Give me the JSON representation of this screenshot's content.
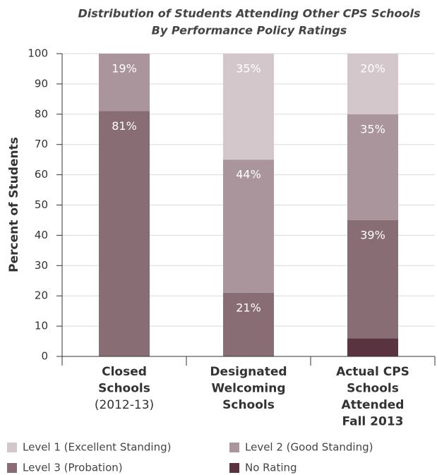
{
  "chart_data": {
    "type": "stacked_bar",
    "title": [
      "Distribution of Students Attending Other CPS Schools",
      "By Performance Policy Ratings"
    ],
    "y_label": "Percent of Students",
    "categories": [
      [
        "Closed",
        "Schools",
        "(2012-13)"
      ],
      [
        "Designated",
        "Welcoming",
        "Schools"
      ],
      [
        "Actual CPS",
        "Schools",
        "Attended",
        "Fall 2013"
      ]
    ],
    "series": [
      {
        "name": "Level 1 (Excellent Standing)",
        "color": "#d4c7cb",
        "values": [
          0,
          35,
          20
        ],
        "value_labels": [
          null,
          "35%",
          "20%"
        ]
      },
      {
        "name": "Level 2 (Good Standing)",
        "color": "#a9959b",
        "values": [
          19,
          44,
          35
        ],
        "value_labels": [
          "19%",
          "44%",
          "35%"
        ]
      },
      {
        "name": "Level 3 (Probation)",
        "color": "#886e74",
        "values": [
          81,
          21,
          39
        ],
        "value_labels": [
          "81%",
          "21%",
          "39%"
        ]
      },
      {
        "name": "No Rating",
        "color": "#5a3340",
        "values": [
          0,
          0,
          6
        ],
        "value_labels": [
          null,
          null,
          null
        ]
      }
    ],
    "ylim": [
      0,
      100
    ],
    "yticks": [
      0,
      10,
      20,
      30,
      40,
      50,
      60,
      70,
      80,
      90,
      100
    ],
    "grid": true
  }
}
